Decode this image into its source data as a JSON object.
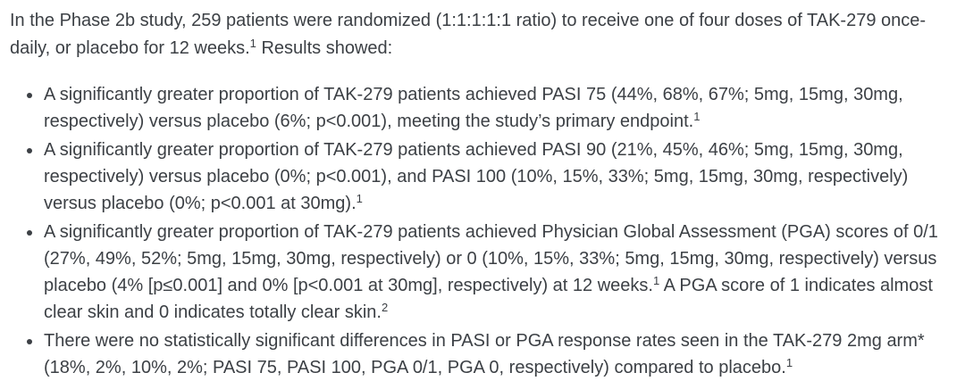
{
  "page": {
    "background_color": "#ffffff",
    "text_color": "#3c4045"
  },
  "content": {
    "intro": {
      "segments": [
        {
          "text": "In the Phase 2b study, 259 patients were randomized (1:1:1:1:1 ratio) to receive one of four doses of TAK-279 once-daily, or placebo for 12 weeks."
        },
        {
          "text": "1",
          "sup": true
        },
        {
          "text": " Results showed:"
        }
      ]
    },
    "bullets": [
      {
        "segments": [
          {
            "text": "A significantly greater proportion of TAK-279 patients achieved PASI 75 (44%, 68%, 67%; 5mg, 15mg, 30mg, respectively) versus placebo (6%; p<0.001), meeting the study’s primary endpoint."
          },
          {
            "text": "1",
            "sup": true
          }
        ]
      },
      {
        "segments": [
          {
            "text": "A significantly greater proportion of TAK-279 patients achieved PASI 90 (21%, 45%, 46%; 5mg, 15mg, 30mg, respectively) versus placebo (0%; p<0.001), and PASI 100 (10%, 15%, 33%; 5mg, 15mg, 30mg, respectively) versus placebo (0%; p<0.001 at 30mg)."
          },
          {
            "text": "1",
            "sup": true
          }
        ]
      },
      {
        "segments": [
          {
            "text": "A significantly greater proportion of TAK-279 patients achieved Physician Global Assessment (PGA) scores of 0/1 (27%, 49%, 52%; 5mg, 15mg, 30mg, respectively) or 0 (10%, 15%, 33%; 5mg, 15mg, 30mg, respectively) versus placebo (4% [p≤0.001] and 0% [p<0.001 at 30mg], respectively) at 12 weeks."
          },
          {
            "text": "1",
            "sup": true
          },
          {
            "text": " A PGA score of 1 indicates almost clear skin and 0 indicates totally clear skin."
          },
          {
            "text": "2",
            "sup": true
          }
        ]
      },
      {
        "segments": [
          {
            "text": "There were no statistically significant differences in PASI or PGA response rates seen in the TAK-279 2mg arm* (18%, 2%, 10%, 2%; PASI 75, PASI 100, PGA 0/1, PGA 0, respectively) compared to placebo."
          },
          {
            "text": "1",
            "sup": true
          }
        ]
      }
    ]
  }
}
